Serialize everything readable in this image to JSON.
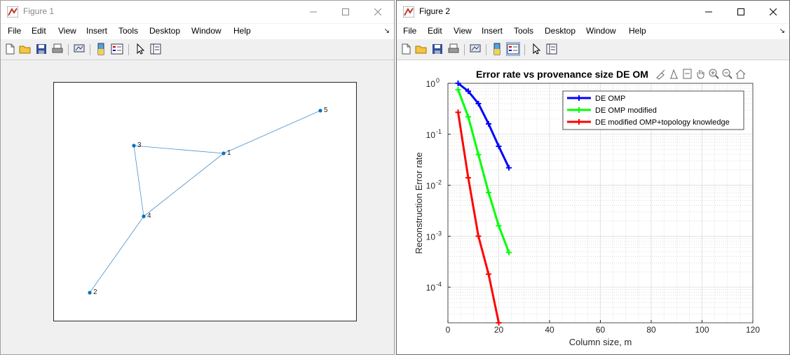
{
  "figure1": {
    "title": "Figure 1",
    "menu": [
      "File",
      "Edit",
      "View",
      "Insert",
      "Tools",
      "Desktop",
      "Window",
      "Help"
    ],
    "menu_overflow": "↘",
    "toolbar": [
      "new-figure-icon",
      "open-file-icon",
      "save-icon",
      "print-icon",
      "link-plot-icon",
      "colorbar-icon",
      "legend-icon",
      "pointer-icon",
      "property-inspector-icon"
    ],
    "nodes": [
      {
        "id": "1",
        "label": "1"
      },
      {
        "id": "2",
        "label": "2"
      },
      {
        "id": "3",
        "label": "3"
      },
      {
        "id": "4",
        "label": "4"
      },
      {
        "id": "5",
        "label": "5"
      }
    ],
    "edges": [
      [
        "3",
        "1"
      ],
      [
        "1",
        "5"
      ],
      [
        "3",
        "4"
      ],
      [
        "4",
        "1"
      ],
      [
        "4",
        "2"
      ]
    ]
  },
  "figure2": {
    "title": "Figure 2",
    "menu": [
      "File",
      "Edit",
      "View",
      "Insert",
      "Tools",
      "Desktop",
      "Window",
      "Help"
    ],
    "menu_overflow": "↘",
    "axes_toolbar": [
      "brush-icon",
      "data-tips-icon",
      "edit-icon",
      "pan-icon",
      "zoom-in-icon",
      "zoom-out-icon",
      "home-icon"
    ]
  },
  "chart_data": {
    "type": "line",
    "title": "Error rate vs provenance size DE OM",
    "xlabel": "Column size, m",
    "ylabel": "Reconstruction Error rate",
    "xlim": [
      0,
      120
    ],
    "xticks": [
      0,
      20,
      40,
      60,
      80,
      100,
      120
    ],
    "yscale": "log",
    "ylim": [
      2e-05,
      1
    ],
    "yticks": [
      {
        "value": 1,
        "base": "10",
        "exp": "0"
      },
      {
        "value": 0.1,
        "base": "10",
        "exp": "-1"
      },
      {
        "value": 0.01,
        "base": "10",
        "exp": "-2"
      },
      {
        "value": 0.001,
        "base": "10",
        "exp": "-3"
      },
      {
        "value": 0.0001,
        "base": "10",
        "exp": "-4"
      }
    ],
    "grid": true,
    "legend_position": "top-right",
    "series": [
      {
        "name": "DE OMP",
        "color": "#0000ff",
        "x": [
          4,
          8,
          12,
          16,
          20,
          24
        ],
        "y": [
          1.0,
          0.7,
          0.4,
          0.16,
          0.058,
          0.022
        ]
      },
      {
        "name": "DE OMP modified",
        "color": "#00ff00",
        "x": [
          4,
          8,
          12,
          16,
          20,
          24
        ],
        "y": [
          0.75,
          0.22,
          0.04,
          0.0072,
          0.0016,
          0.00048
        ]
      },
      {
        "name": "DE modified OMP+topology knowledge",
        "color": "#ff0000",
        "x": [
          4,
          8,
          12,
          16,
          20
        ],
        "y": [
          0.27,
          0.014,
          0.001,
          0.00018,
          2e-05
        ]
      }
    ]
  }
}
